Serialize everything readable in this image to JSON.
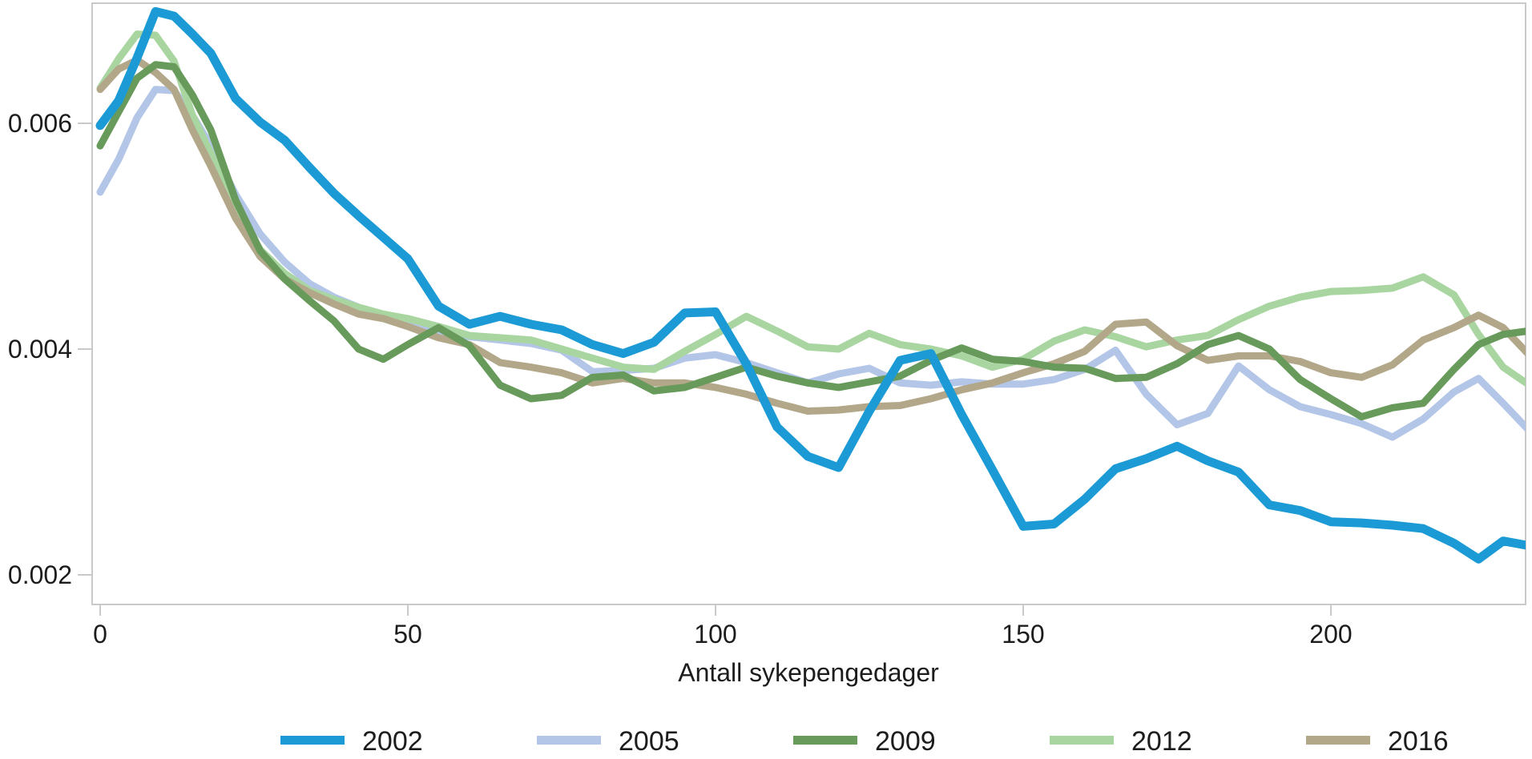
{
  "figure": {
    "background": "#ffffff",
    "axis_color": "#c9c9c9",
    "text_color": "#1c1c1c"
  },
  "chart_data": {
    "type": "line",
    "title": "",
    "xlabel": "Antall sykepengedager",
    "ylabel": "",
    "grid": false,
    "legend_position": "bottom",
    "x_axis": {
      "min": 0,
      "max": 232,
      "ticks": [
        0,
        50,
        100,
        150,
        200
      ]
    },
    "y_axis": {
      "min": 0.00174,
      "max": 0.00706,
      "ticks": [
        0.002,
        0.004,
        0.006
      ],
      "tick_labels": [
        "0.002",
        "0.004",
        "0.006"
      ]
    },
    "draw_order": [
      "2005",
      "2012",
      "2016",
      "2009",
      "2002"
    ],
    "x": [
      0,
      3,
      6,
      9,
      12,
      15,
      18,
      22,
      26,
      30,
      34,
      38,
      42,
      46,
      50,
      55,
      60,
      65,
      70,
      75,
      80,
      85,
      90,
      95,
      100,
      105,
      110,
      115,
      120,
      125,
      130,
      135,
      140,
      145,
      150,
      155,
      160,
      165,
      170,
      175,
      180,
      185,
      190,
      195,
      200,
      205,
      210,
      215,
      220,
      224,
      228,
      232
    ],
    "series": [
      {
        "name": "2002",
        "color": "#1b9ad6",
        "line_width": 11,
        "values": [
          0.00598,
          0.0062,
          0.00658,
          0.00699,
          0.00695,
          0.00679,
          0.00662,
          0.00622,
          0.00601,
          0.00585,
          0.00561,
          0.00538,
          0.00518,
          0.00499,
          0.0048,
          0.00438,
          0.00422,
          0.00429,
          0.00422,
          0.00417,
          0.00404,
          0.00396,
          0.00406,
          0.00432,
          0.00433,
          0.00387,
          0.00331,
          0.00305,
          0.00295,
          0.00345,
          0.0039,
          0.00396,
          0.00342,
          0.00293,
          0.00243,
          0.00245,
          0.00267,
          0.00294,
          0.00303,
          0.00314,
          0.00301,
          0.00291,
          0.00262,
          0.00257,
          0.00247,
          0.00246,
          0.00244,
          0.00241,
          0.00228,
          0.00214,
          0.0023,
          0.00226
        ]
      },
      {
        "name": "2005",
        "color": "#b3c6e7",
        "line_width": 9,
        "values": [
          0.00539,
          0.00568,
          0.00605,
          0.0063,
          0.00629,
          0.00607,
          0.0058,
          0.00537,
          0.00502,
          0.00477,
          0.00458,
          0.00446,
          0.00437,
          0.00428,
          0.00421,
          0.00414,
          0.00411,
          0.00408,
          0.00405,
          0.00399,
          0.0038,
          0.00381,
          0.00383,
          0.00392,
          0.00395,
          0.00388,
          0.00379,
          0.0037,
          0.00378,
          0.00383,
          0.0037,
          0.00368,
          0.00371,
          0.00369,
          0.00369,
          0.00373,
          0.00382,
          0.00399,
          0.0036,
          0.00333,
          0.00343,
          0.00385,
          0.00364,
          0.00349,
          0.00342,
          0.00334,
          0.00322,
          0.00338,
          0.00362,
          0.00374,
          0.00352,
          0.00329
        ]
      },
      {
        "name": "2009",
        "color": "#679a5b",
        "line_width": 9,
        "values": [
          0.0058,
          0.0061,
          0.0064,
          0.00652,
          0.0065,
          0.00625,
          0.00594,
          0.00532,
          0.00487,
          0.00462,
          0.00443,
          0.00425,
          0.004,
          0.00391,
          0.00404,
          0.00419,
          0.00403,
          0.00368,
          0.00356,
          0.00359,
          0.00375,
          0.00377,
          0.00363,
          0.00366,
          0.00375,
          0.00384,
          0.00376,
          0.0037,
          0.00366,
          0.00371,
          0.00376,
          0.0039,
          0.00401,
          0.00391,
          0.00389,
          0.00384,
          0.00383,
          0.00374,
          0.00375,
          0.00387,
          0.00404,
          0.00412,
          0.004,
          0.00373,
          0.00356,
          0.0034,
          0.00348,
          0.00352,
          0.00382,
          0.00404,
          0.00413,
          0.00416
        ]
      },
      {
        "name": "2012",
        "color": "#a8d5a0",
        "line_width": 9,
        "values": [
          0.00631,
          0.00657,
          0.00679,
          0.00678,
          0.00655,
          0.00607,
          0.00573,
          0.00523,
          0.00488,
          0.00467,
          0.00452,
          0.00444,
          0.00437,
          0.00431,
          0.00427,
          0.0042,
          0.00412,
          0.0041,
          0.00408,
          0.004,
          0.00392,
          0.00384,
          0.00382,
          0.00398,
          0.00413,
          0.00429,
          0.00416,
          0.00402,
          0.004,
          0.00414,
          0.00404,
          0.004,
          0.00394,
          0.00384,
          0.00391,
          0.00407,
          0.00417,
          0.00411,
          0.00402,
          0.00408,
          0.00412,
          0.00426,
          0.00438,
          0.00446,
          0.00451,
          0.00452,
          0.00454,
          0.00464,
          0.00448,
          0.00413,
          0.00384,
          0.00369
        ]
      },
      {
        "name": "2016",
        "color": "#b3a78a",
        "line_width": 9,
        "values": [
          0.0063,
          0.00648,
          0.00656,
          0.00645,
          0.0063,
          0.00594,
          0.00562,
          0.00516,
          0.00482,
          0.00462,
          0.0045,
          0.0044,
          0.00431,
          0.00427,
          0.0042,
          0.0041,
          0.00404,
          0.00388,
          0.00384,
          0.00379,
          0.0037,
          0.00374,
          0.0037,
          0.0037,
          0.00366,
          0.0036,
          0.00352,
          0.00345,
          0.00346,
          0.00349,
          0.0035,
          0.00356,
          0.00364,
          0.0037,
          0.00379,
          0.00387,
          0.00398,
          0.00422,
          0.00424,
          0.00403,
          0.0039,
          0.00394,
          0.00394,
          0.00389,
          0.00379,
          0.00375,
          0.00386,
          0.00408,
          0.00419,
          0.0043,
          0.00419,
          0.00396
        ]
      }
    ]
  }
}
